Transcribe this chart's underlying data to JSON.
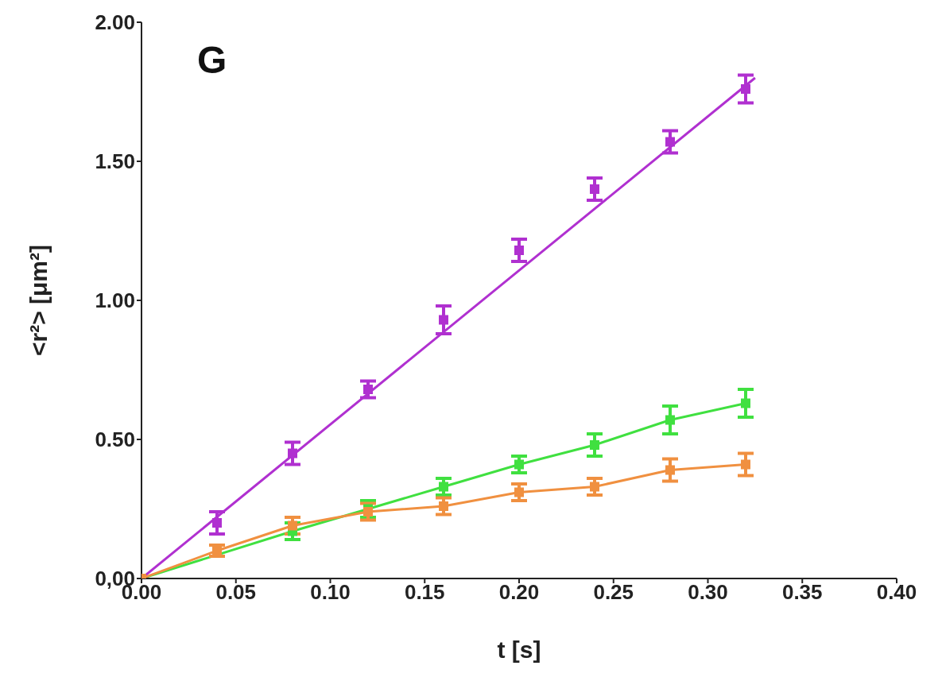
{
  "chart_data": {
    "type": "scatter",
    "xlabel": "t [s]",
    "ylabel": "<r²> [μm²]",
    "annotations": [
      "G"
    ],
    "xlim": [
      0,
      0.4
    ],
    "xticks": [
      {
        "value": 0,
        "label": "0.00"
      },
      {
        "value": 0.05,
        "label": "0.05"
      },
      {
        "value": 0.1,
        "label": "0.10"
      },
      {
        "value": 0.15,
        "label": "0.15"
      },
      {
        "value": 0.2,
        "label": "0.20"
      },
      {
        "value": 0.25,
        "label": "0.25"
      },
      {
        "value": 0.3,
        "label": "0.30"
      },
      {
        "value": 0.35,
        "label": "0.35"
      },
      {
        "value": 0.4,
        "label": "0.40"
      }
    ],
    "ylim": [
      0,
      2
    ],
    "yticks": [
      {
        "value": 0,
        "label": "0,00"
      },
      {
        "value": 0.5,
        "label": "0.50"
      },
      {
        "value": 1,
        "label": "1.00"
      },
      {
        "value": 1.5,
        "label": "1.50"
      },
      {
        "value": 2,
        "label": "2.00"
      }
    ],
    "grid": false,
    "legend": false,
    "marker": "square",
    "series": [
      {
        "color": "#b030d0",
        "x": [
          0.04,
          0.08,
          0.12,
          0.16,
          0.2,
          0.24,
          0.28,
          0.32
        ],
        "values": [
          0.2,
          0.45,
          0.68,
          0.93,
          1.18,
          1.4,
          1.57,
          1.76
        ],
        "errors": [
          0.04,
          0.04,
          0.03,
          0.05,
          0.04,
          0.04,
          0.04,
          0.05
        ]
      },
      {
        "type": "line",
        "color": "#b030d0",
        "marker": "none",
        "x": [
          0,
          0.325
        ],
        "values": [
          0,
          1.8
        ]
      },
      {
        "type": "line",
        "color": "#40e040",
        "x": [
          0,
          0.04,
          0.08,
          0.12,
          0.16,
          0.2,
          0.24,
          0.28,
          0.32
        ],
        "values": [
          0,
          null,
          0.17,
          0.25,
          0.33,
          0.41,
          0.48,
          0.57,
          0.63
        ],
        "errors": [
          null,
          null,
          0.03,
          0.03,
          0.03,
          0.03,
          0.04,
          0.05,
          0.05
        ]
      },
      {
        "type": "line",
        "color": "#f09040",
        "x": [
          0,
          0.04,
          0.08,
          0.12,
          0.16,
          0.2,
          0.24,
          0.28,
          0.32
        ],
        "values": [
          0,
          0.1,
          0.19,
          0.24,
          0.26,
          0.31,
          0.33,
          0.39,
          0.41
        ],
        "errors": [
          null,
          0.02,
          0.03,
          0.03,
          0.03,
          0.03,
          0.03,
          0.04,
          0.04
        ]
      }
    ]
  }
}
